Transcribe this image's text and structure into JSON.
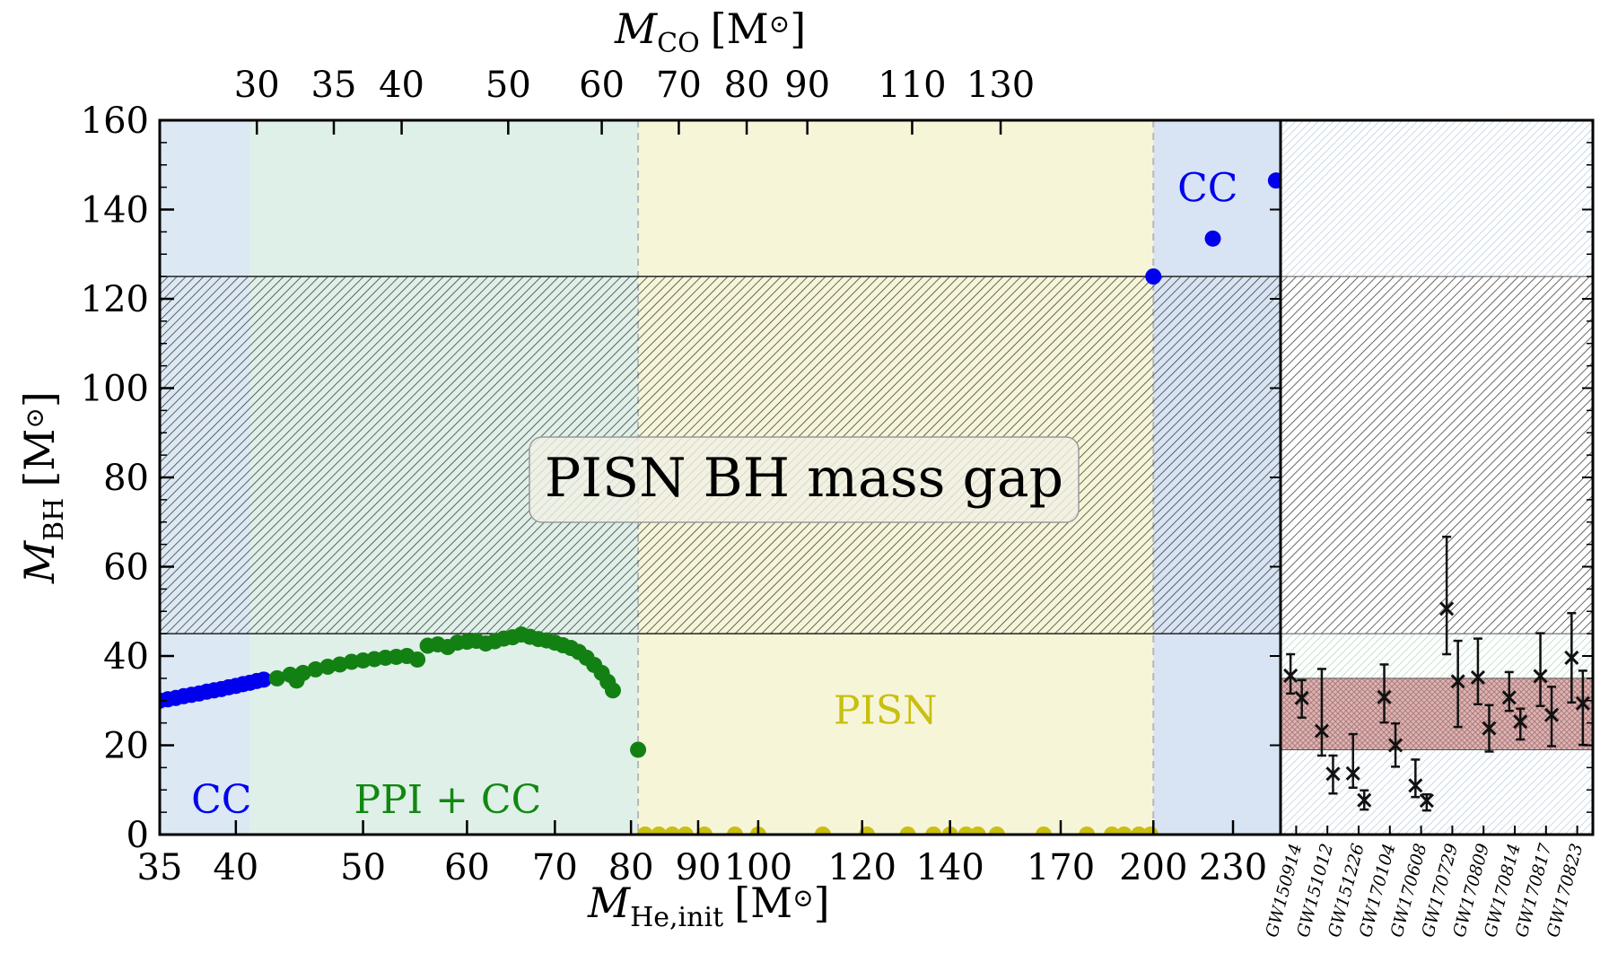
{
  "chart_data": [
    {
      "type": "scatter",
      "xscale": "log",
      "xlim": [
        35,
        250
      ],
      "ylim": [
        0,
        160
      ],
      "xlabel_main": "M",
      "xlabel_sub": "He,init",
      "xlabel_unit": "[M",
      "xlabel_unit_end": "]",
      "ylabel_main": "M",
      "ylabel_sub": "BH",
      "ylabel_unit": "[M",
      "ylabel_unit_end": "]",
      "top_xlabel_main": "M",
      "top_xlabel_sub": "CO",
      "top_xlabel_unit": "[M",
      "top_xlabel_unit_end": "]",
      "xticks": [
        35,
        40,
        50,
        60,
        70,
        80,
        90,
        100,
        120,
        140,
        170,
        200,
        230
      ],
      "xtick_labels": [
        "35",
        "40",
        "50",
        "60",
        "70",
        "80",
        "90",
        "100",
        "120",
        "140",
        "170",
        "200",
        "230"
      ],
      "yticks": [
        0,
        20,
        40,
        60,
        80,
        100,
        120,
        140,
        160
      ],
      "ytick_labels": [
        "0",
        "20",
        "40",
        "60",
        "80",
        "100",
        "120",
        "140",
        "160"
      ],
      "top_xticks": [
        {
          "label": "30",
          "mhe": 41.5
        },
        {
          "label": "35",
          "mhe": 47.5
        },
        {
          "label": "40",
          "mhe": 53.5
        },
        {
          "label": "50",
          "mhe": 64.5
        },
        {
          "label": "60",
          "mhe": 76.0
        },
        {
          "label": "70",
          "mhe": 87.0
        },
        {
          "label": "80",
          "mhe": 98.0
        },
        {
          "label": "90",
          "mhe": 109.0
        },
        {
          "label": "110",
          "mhe": 131.0
        },
        {
          "label": "130",
          "mhe": 153.0
        }
      ],
      "regions": [
        {
          "name": "CC",
          "x_from": 35,
          "x_to": 41,
          "color": "#dce8f3"
        },
        {
          "name": "PPI + CC",
          "x_from": 41,
          "x_to": 81,
          "color": "#dff0e8"
        },
        {
          "name": "PISN",
          "x_from": 81,
          "x_to": 200,
          "color": "#f7f5d8"
        },
        {
          "name": "CC",
          "x_from": 200,
          "x_to": 250,
          "color": "#d8e4f3"
        }
      ],
      "mass_gap": {
        "label": "PISN BH mass gap",
        "y_from": 45,
        "y_to": 125
      },
      "region_labels": [
        {
          "text": "CC",
          "x": 39,
          "y": 8,
          "color": "#0000ee"
        },
        {
          "text": "PPI + CC",
          "x": 58,
          "y": 8,
          "color": "#118811"
        },
        {
          "text": "PISN",
          "x": 125,
          "y": 28,
          "color": "#c8bf10"
        },
        {
          "text": "CC",
          "x": 220,
          "y": 145,
          "color": "#0000ee"
        }
      ],
      "series": [
        {
          "color": "#0000ee",
          "points": [
            [
              35,
              30.0
            ],
            [
              35.5,
              30.3
            ],
            [
              36,
              30.6
            ],
            [
              36.5,
              31.0
            ],
            [
              37,
              31.3
            ],
            [
              37.5,
              31.6
            ],
            [
              38,
              32.0
            ],
            [
              38.5,
              32.3
            ],
            [
              39,
              32.6
            ],
            [
              39.5,
              33.0
            ],
            [
              40,
              33.3
            ],
            [
              40.5,
              33.7
            ],
            [
              41,
              34.0
            ],
            [
              41.5,
              34.4
            ],
            [
              42,
              34.7
            ]
          ]
        },
        {
          "color": "#138013",
          "points": [
            [
              43,
              35.0
            ],
            [
              44,
              35.8
            ],
            [
              44.5,
              34.5
            ],
            [
              45,
              36.2
            ],
            [
              46,
              37.0
            ],
            [
              47,
              37.6
            ],
            [
              48,
              38.1
            ],
            [
              49,
              38.7
            ],
            [
              50,
              39.0
            ],
            [
              51,
              39.3
            ],
            [
              52,
              39.6
            ],
            [
              53,
              39.8
            ],
            [
              54,
              40.0
            ],
            [
              55,
              39.2
            ],
            [
              56,
              42.3
            ],
            [
              57,
              42.6
            ],
            [
              58,
              42.0
            ],
            [
              59,
              43.0
            ],
            [
              60,
              43.2
            ],
            [
              61,
              43.4
            ],
            [
              62,
              42.8
            ],
            [
              63,
              43.3
            ],
            [
              64,
              43.9
            ],
            [
              65,
              44.2
            ],
            [
              66,
              44.8
            ],
            [
              67,
              44.3
            ],
            [
              68,
              43.8
            ],
            [
              69,
              43.5
            ],
            [
              70,
              43.0
            ],
            [
              71,
              42.4
            ],
            [
              72,
              41.8
            ],
            [
              73,
              40.9
            ],
            [
              74,
              39.6
            ],
            [
              75,
              38.0
            ],
            [
              76,
              36.2
            ],
            [
              76.8,
              34.2
            ],
            [
              77.5,
              32.3
            ],
            [
              81,
              19.0
            ]
          ]
        },
        {
          "color": "#c8bf10",
          "points": [
            [
              82,
              0
            ],
            [
              84,
              0
            ],
            [
              86,
              0
            ],
            [
              88,
              0
            ],
            [
              91,
              0
            ],
            [
              96,
              0
            ],
            [
              100,
              0
            ],
            [
              112,
              0
            ],
            [
              121,
              0
            ],
            [
              130,
              0
            ],
            [
              136,
              0
            ],
            [
              140,
              0
            ],
            [
              144,
              0
            ],
            [
              147,
              0
            ],
            [
              152,
              0
            ],
            [
              165,
              0
            ],
            [
              178,
              0
            ],
            [
              186,
              0
            ],
            [
              190,
              0
            ],
            [
              195,
              0
            ],
            [
              199,
              0
            ]
          ]
        },
        {
          "color": "#0000ee",
          "points": [
            [
              200,
              125
            ],
            [
              222,
              133.5
            ],
            [
              248,
              146.5
            ]
          ]
        }
      ]
    },
    {
      "type": "scatter",
      "ylim": [
        0,
        160
      ],
      "categories": [
        "GW150914",
        "GW151012",
        "GW151226",
        "GW170104",
        "GW170608",
        "GW170729",
        "GW170809",
        "GW170814",
        "GW170817",
        "GW170823"
      ],
      "bands": [
        {
          "y_from": 125,
          "y_to": 160,
          "color": "#c6d9ec"
        },
        {
          "y_from": 45,
          "y_to": 125,
          "color": "#222222"
        },
        {
          "y_from": 35,
          "y_to": 45,
          "color": "#bfe0cc"
        },
        {
          "y_from": 19,
          "y_to": 35,
          "color": "#c9a0a0"
        },
        {
          "y_from": 0,
          "y_to": 19,
          "color": "#c6d9ec"
        }
      ],
      "events": [
        {
          "m1": 35.6,
          "m1_lo": 31.6,
          "m1_hi": 40.4,
          "m2": 30.6,
          "m2_lo": 26.2,
          "m2_hi": 34.6
        },
        {
          "m1": 23.2,
          "m1_lo": 17.7,
          "m1_hi": 37.1,
          "m2": 13.6,
          "m2_lo": 9.2,
          "m2_hi": 17.7
        },
        {
          "m1": 13.7,
          "m1_lo": 10.5,
          "m1_hi": 22.5,
          "m2": 7.7,
          "m2_lo": 5.6,
          "m2_hi": 9.9
        },
        {
          "m1": 30.8,
          "m1_lo": 25.1,
          "m1_hi": 38.1,
          "m2": 20.0,
          "m2_lo": 15.2,
          "m2_hi": 24.9
        },
        {
          "m1": 11.0,
          "m1_lo": 8.4,
          "m1_hi": 16.8,
          "m2": 7.6,
          "m2_lo": 5.4,
          "m2_hi": 9.0
        },
        {
          "m1": 50.6,
          "m1_lo": 40.4,
          "m1_hi": 66.7,
          "m2": 34.3,
          "m2_lo": 24.1,
          "m2_hi": 43.4
        },
        {
          "m1": 35.2,
          "m1_lo": 29.2,
          "m1_hi": 43.9,
          "m2": 23.8,
          "m2_lo": 18.6,
          "m2_hi": 29.0
        },
        {
          "m1": 30.7,
          "m1_lo": 27.7,
          "m1_hi": 36.4,
          "m2": 25.3,
          "m2_lo": 21.3,
          "m2_hi": 28.2
        },
        {
          "m1": 35.5,
          "m1_lo": 28.8,
          "m1_hi": 45.1,
          "m2": 26.8,
          "m2_lo": 19.8,
          "m2_hi": 33.1
        },
        {
          "m1": 39.6,
          "m1_lo": 29.6,
          "m1_hi": 49.6,
          "m2": 29.4,
          "m2_lo": 20.1,
          "m2_hi": 36.7
        }
      ]
    }
  ]
}
